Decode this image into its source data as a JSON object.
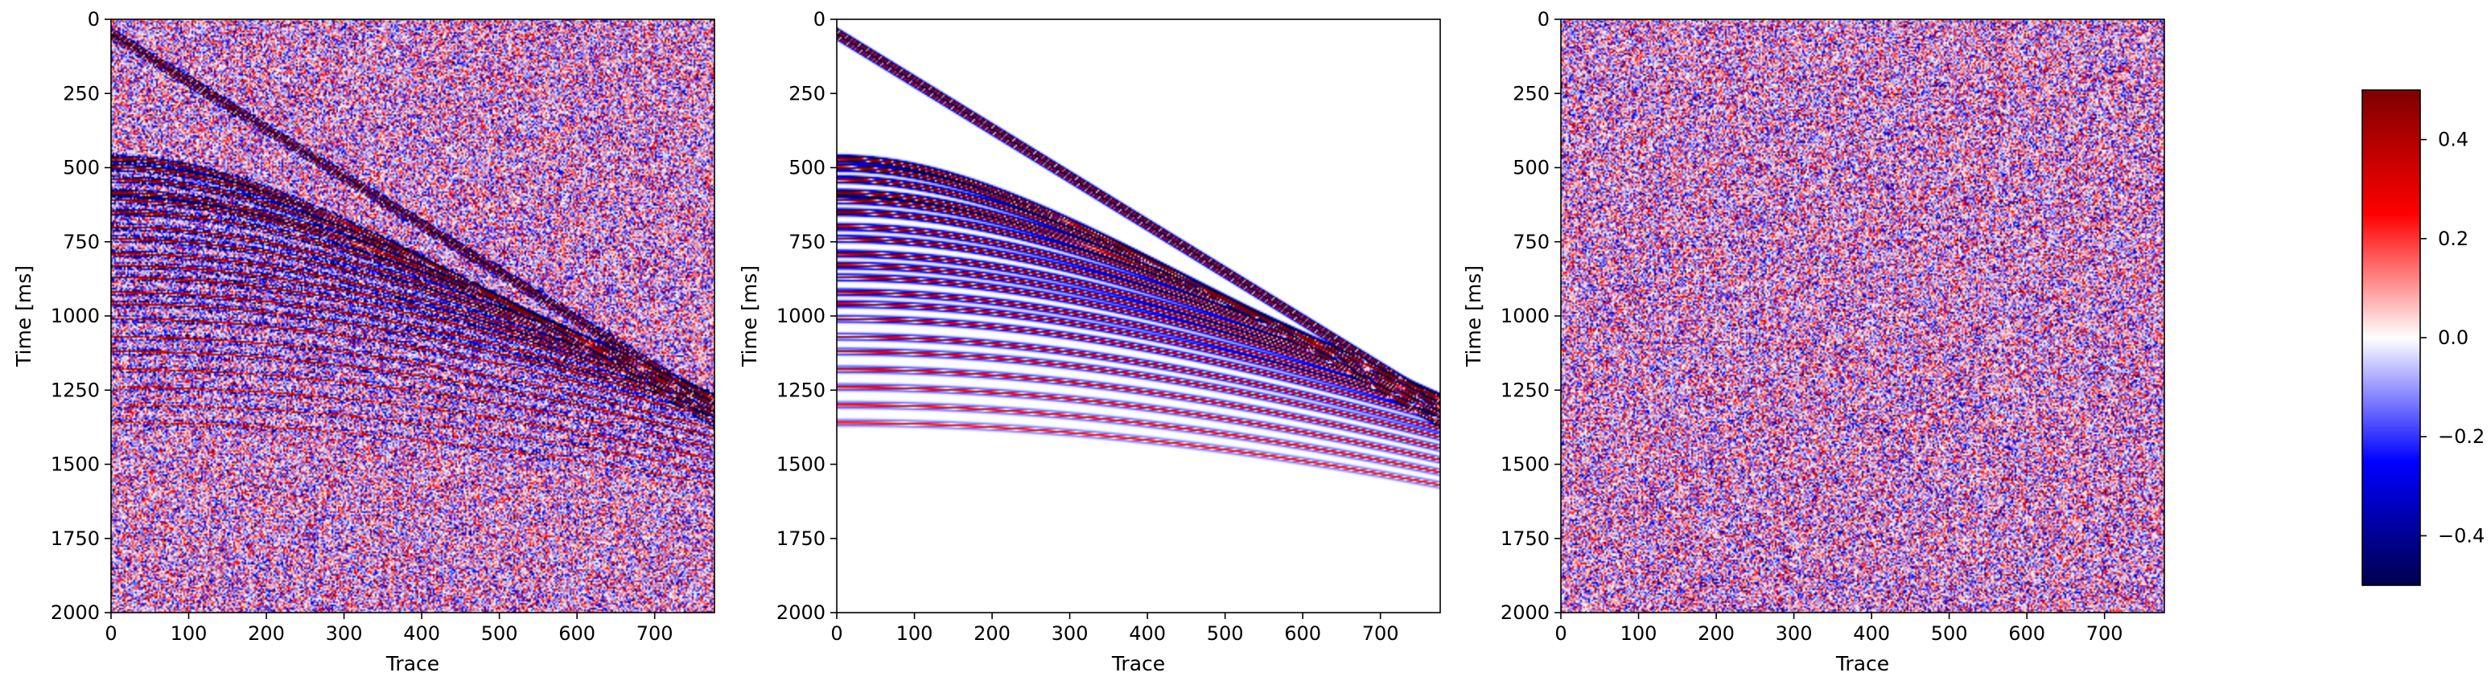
{
  "chart_data": [
    {
      "type": "heatmap",
      "panel": "left",
      "content": "noisy",
      "xlabel": "Trace",
      "ylabel": "Time [ms]",
      "x_range": [
        0,
        777
      ],
      "y_range": [
        2000,
        0
      ],
      "x_ticks": [
        "0",
        "100",
        "200",
        "300",
        "400",
        "500",
        "600",
        "700"
      ],
      "y_ticks": [
        "0",
        "250",
        "500",
        "750",
        "1000",
        "1250",
        "1500",
        "1750",
        "2000"
      ],
      "noise_std": 0.18,
      "direct_arrival": {
        "t0": 40,
        "t_end": 1290,
        "trace_end": 777
      },
      "hyperbola_t0": [
        470,
        500,
        540,
        585,
        610,
        650,
        700,
        740,
        790,
        830,
        870,
        920,
        960,
        1010,
        1070,
        1120,
        1180,
        1240,
        1300,
        1360
      ],
      "hyperbola_amplitude": [
        0.6,
        0.55,
        0.5,
        0.5,
        0.45,
        0.45,
        0.4,
        0.4,
        0.38,
        0.36,
        0.34,
        0.32,
        0.3,
        0.28,
        0.26,
        0.24,
        0.22,
        0.2,
        0.18,
        0.16
      ]
    },
    {
      "type": "heatmap",
      "panel": "middle",
      "content": "clean",
      "xlabel": "Trace",
      "ylabel": "Time [ms]",
      "x_range": [
        0,
        777
      ],
      "y_range": [
        2000,
        0
      ],
      "x_ticks": [
        "0",
        "100",
        "200",
        "300",
        "400",
        "500",
        "600",
        "700"
      ],
      "y_ticks": [
        "0",
        "250",
        "500",
        "750",
        "1000",
        "1250",
        "1500",
        "1750",
        "2000"
      ],
      "noise_std": 0,
      "direct_arrival": {
        "t0": 40,
        "t_end": 1290,
        "trace_end": 777
      },
      "hyperbola_t0": [
        470,
        500,
        540,
        585,
        610,
        650,
        700,
        740,
        790,
        830,
        870,
        920,
        960,
        1010,
        1070,
        1120,
        1180,
        1240,
        1300,
        1360
      ],
      "hyperbola_amplitude": [
        0.6,
        0.55,
        0.5,
        0.5,
        0.45,
        0.45,
        0.4,
        0.4,
        0.38,
        0.36,
        0.34,
        0.32,
        0.3,
        0.28,
        0.26,
        0.24,
        0.22,
        0.2,
        0.18,
        0.16
      ]
    },
    {
      "type": "heatmap",
      "panel": "right",
      "content": "noise",
      "xlabel": "Trace",
      "ylabel": "Time [ms]",
      "x_range": [
        0,
        777
      ],
      "y_range": [
        2000,
        0
      ],
      "x_ticks": [
        "0",
        "100",
        "200",
        "300",
        "400",
        "500",
        "600",
        "700"
      ],
      "y_ticks": [
        "0",
        "250",
        "500",
        "750",
        "1000",
        "1250",
        "1500",
        "1750",
        "2000"
      ],
      "noise_std": 0.18
    }
  ],
  "colorbar": {
    "colormap": "seismic",
    "vmin": -0.5,
    "vmax": 0.5,
    "ticks": [
      0.4,
      0.2,
      0.0,
      -0.2,
      -0.4
    ],
    "tick_labels": [
      "0.4",
      "0.2",
      "0.0",
      "−0.2",
      "−0.4"
    ],
    "colors": {
      "low": "#00004c",
      "mid_low": "#0000ff",
      "center": "#ffffff",
      "mid_high": "#ff0000",
      "high": "#800000"
    }
  }
}
